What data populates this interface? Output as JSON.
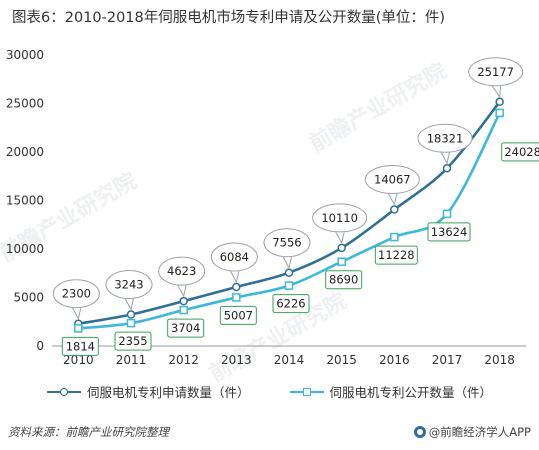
{
  "title": "图表6：2010-2018年伺服电机市场专利申请及公开数量(单位：件)",
  "source": "资料来源：前瞻产业研究院整理",
  "brand": "@前瞻经济学人APP",
  "watermarks": [
    "前瞻产业研究院",
    "前瞻产业研究院",
    "前瞻产业研究院"
  ],
  "colors": {
    "series1": "#2e7096",
    "series2": "#3db8d9",
    "axis": "#999999",
    "callout_border": "#9aa3ab",
    "label_border2": "#3aa05a"
  },
  "chart_data": {
    "type": "line",
    "x": [
      "2010",
      "2011",
      "2012",
      "2013",
      "2014",
      "2015",
      "2016",
      "2017",
      "2018"
    ],
    "ylim": [
      0,
      30000
    ],
    "yticks": [
      "0",
      "5000",
      "10000",
      "15000",
      "20000",
      "25000",
      "30000"
    ],
    "grid": false,
    "legend_position": "bottom",
    "series": [
      {
        "name": "伺服电机专利申请数量（件）",
        "values": [
          2300,
          3243,
          4623,
          6084,
          7556,
          10110,
          14067,
          18321,
          25177
        ],
        "labels": [
          "2300",
          "3243",
          "4623",
          "6084",
          "7556",
          "10110",
          "14067",
          "18321",
          "25177"
        ],
        "marker": "circle"
      },
      {
        "name": "伺服电机专利公开数量（件）",
        "values": [
          1814,
          2355,
          3704,
          5007,
          6226,
          8690,
          11228,
          13624,
          24028
        ],
        "labels": [
          "1814",
          "2355",
          "3704",
          "5007",
          "6226",
          "8690",
          "11228",
          "13624",
          "24028"
        ],
        "marker": "square"
      }
    ]
  }
}
